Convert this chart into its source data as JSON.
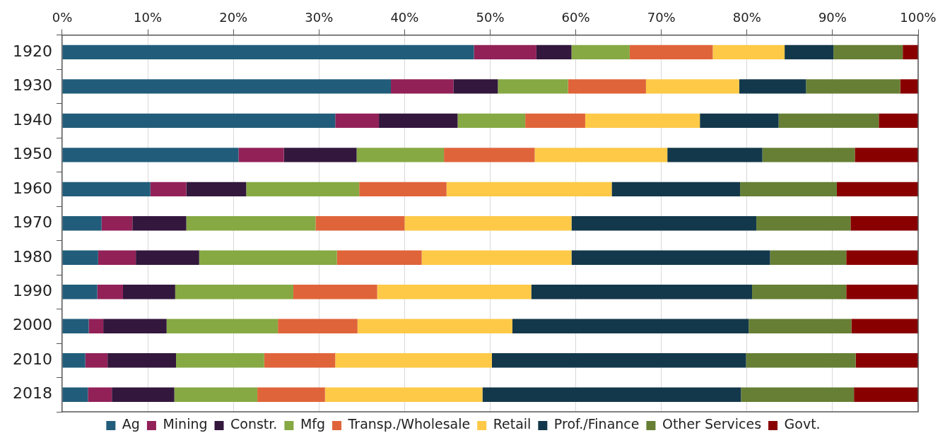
{
  "chart_data": {
    "type": "bar",
    "orientation": "horizontal",
    "stacked": true,
    "categories": [
      "1920",
      "1930",
      "1940",
      "1950",
      "1960",
      "1970",
      "1980",
      "1990",
      "2000",
      "2010",
      "2018"
    ],
    "xlim": [
      0,
      100
    ],
    "xticks": [
      {
        "value": 0,
        "label": "0%"
      },
      {
        "value": 10,
        "label": "10%"
      },
      {
        "value": 20,
        "label": "20%"
      },
      {
        "value": 30,
        "label": "30%"
      },
      {
        "value": 40,
        "label": "40%"
      },
      {
        "value": 50,
        "label": "50%"
      },
      {
        "value": 60,
        "label": "60%"
      },
      {
        "value": 70,
        "label": "70%"
      },
      {
        "value": 80,
        "label": "80%"
      },
      {
        "value": 90,
        "label": "90%"
      },
      {
        "value": 100,
        "label": "100%"
      }
    ],
    "grid": "x",
    "legend": "bottom",
    "series": [
      {
        "name": "Ag",
        "color": "#215d7a",
        "values": [
          48.1,
          38.4,
          31.9,
          20.6,
          10.3,
          4.6,
          4.2,
          4.1,
          3.1,
          2.7,
          3.0
        ]
      },
      {
        "name": "Mining",
        "color": "#922158",
        "values": [
          7.3,
          7.3,
          5.1,
          5.3,
          4.2,
          3.6,
          4.4,
          3.0,
          1.7,
          2.6,
          2.8
        ]
      },
      {
        "name": "Constr.",
        "color": "#33173d",
        "values": [
          4.1,
          5.2,
          9.2,
          8.5,
          7.0,
          6.3,
          7.4,
          6.1,
          7.4,
          8.0,
          7.3
        ]
      },
      {
        "name": "Mfg",
        "color": "#86a943",
        "values": [
          6.8,
          8.2,
          7.9,
          10.2,
          13.2,
          15.1,
          16.1,
          13.8,
          13.0,
          10.3,
          9.7
        ]
      },
      {
        "name": "Transp./Wholesale",
        "color": "#e0643a",
        "values": [
          9.7,
          9.1,
          7.0,
          10.6,
          10.2,
          10.4,
          9.9,
          9.8,
          9.3,
          8.3,
          7.9
        ]
      },
      {
        "name": "Retail",
        "color": "#fdc947",
        "values": [
          8.4,
          10.9,
          13.4,
          15.5,
          19.3,
          19.5,
          17.5,
          18.0,
          18.1,
          18.3,
          18.4
        ]
      },
      {
        "name": "Prof./Finance",
        "color": "#13384b",
        "values": [
          5.7,
          7.8,
          9.2,
          11.1,
          15.0,
          21.6,
          23.2,
          25.8,
          27.6,
          29.7,
          30.2
        ]
      },
      {
        "name": "Other Services",
        "color": "#667f34",
        "values": [
          8.1,
          11.0,
          11.7,
          10.8,
          11.3,
          11.0,
          8.9,
          11.0,
          12.0,
          12.8,
          13.2
        ]
      },
      {
        "name": "Govt.",
        "color": "#890000",
        "values": [
          1.9,
          2.1,
          4.6,
          7.4,
          9.5,
          7.9,
          8.4,
          8.4,
          7.8,
          7.3,
          7.5
        ]
      }
    ]
  }
}
